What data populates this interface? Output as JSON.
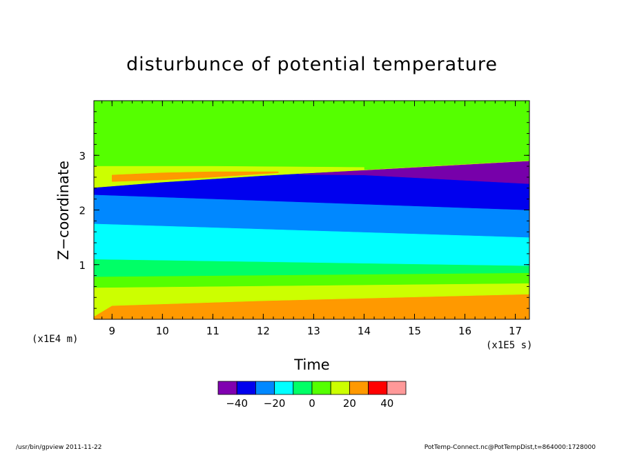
{
  "chart_data": {
    "type": "heatmap",
    "title": "disturbunce of potential temperature",
    "xlabel": "Time",
    "ylabel": "Z−coordinate",
    "x_unit": "(x1E5 s)",
    "y_unit": "(x1E4 m)",
    "xlim": [
      8.64,
      17.28
    ],
    "ylim": [
      0,
      4
    ],
    "x_ticks": [
      9,
      10,
      11,
      12,
      13,
      14,
      15,
      16,
      17
    ],
    "x_tick_labels": [
      "9",
      "10",
      "11",
      "12",
      "13",
      "14",
      "15",
      "16",
      "17"
    ],
    "y_ticks": [
      1,
      2,
      3
    ],
    "y_tick_labels": [
      "1",
      "2",
      "3"
    ],
    "background_level_color": "#55ff00",
    "bands": [
      {
        "name": "orange-lower",
        "color": "#ff9900",
        "top": [
          [
            8.64,
            0.05
          ],
          [
            9.0,
            0.25
          ],
          [
            12.0,
            0.34
          ],
          [
            17.28,
            0.46
          ]
        ],
        "bottom": [
          [
            8.64,
            0.0
          ],
          [
            17.28,
            0.0
          ]
        ]
      },
      {
        "name": "yellow-lower",
        "color": "#ccff00",
        "top": [
          [
            8.64,
            0.58
          ],
          [
            17.28,
            0.66
          ]
        ],
        "bottom": "orange-lower"
      },
      {
        "name": "green-lower",
        "color": "#55ff00",
        "top": [
          [
            8.64,
            0.78
          ],
          [
            17.28,
            0.85
          ]
        ],
        "bottom": "yellow-lower"
      },
      {
        "name": "mint-lower",
        "color": "#00ff66",
        "top": [
          [
            8.64,
            1.1
          ],
          [
            17.28,
            0.98
          ]
        ],
        "bottom": "green-lower"
      },
      {
        "name": "cyan",
        "color": "#00ffff",
        "top": [
          [
            8.64,
            1.75
          ],
          [
            17.28,
            1.5
          ]
        ],
        "bottom": "mint-lower"
      },
      {
        "name": "azure",
        "color": "#0088ff",
        "top": [
          [
            8.64,
            2.28
          ],
          [
            17.28,
            2.0
          ]
        ],
        "bottom": "cyan"
      },
      {
        "name": "blue",
        "color": "#0000ee",
        "top": [
          [
            8.64,
            2.41
          ],
          [
            10.0,
            2.51
          ],
          [
            12.0,
            2.63
          ],
          [
            14.0,
            2.73
          ],
          [
            17.28,
            2.9
          ]
        ],
        "bottom": "azure"
      },
      {
        "name": "purple",
        "color": "#7700aa",
        "top": [
          [
            12.7,
            2.65
          ],
          [
            14.0,
            2.73
          ],
          [
            17.28,
            2.9
          ]
        ],
        "bottom": [
          [
            12.7,
            2.65
          ],
          [
            14.0,
            2.64
          ],
          [
            17.28,
            2.48
          ]
        ]
      },
      {
        "name": "yellow-upper",
        "color": "#ccff00",
        "top": [
          [
            8.64,
            2.8
          ],
          [
            11.0,
            2.8
          ],
          [
            14.0,
            2.78
          ],
          [
            14.0,
            2.73
          ]
        ],
        "bottom": "blue"
      },
      {
        "name": "orange-upper",
        "color": "#ff9900",
        "top": [
          [
            9.0,
            2.64
          ],
          [
            10.0,
            2.68
          ],
          [
            11.0,
            2.7
          ],
          [
            12.3,
            2.7
          ]
        ],
        "bottom": [
          [
            9.0,
            2.52
          ],
          [
            10.0,
            2.55
          ],
          [
            11.0,
            2.6
          ],
          [
            12.3,
            2.68
          ]
        ]
      }
    ],
    "colorbar": {
      "colors": [
        "#8000b0",
        "#0000ee",
        "#0088ff",
        "#00ffff",
        "#00ff66",
        "#55ff00",
        "#ccff00",
        "#ff9900",
        "#ff0000",
        "#ff9999"
      ],
      "tick_labels": [
        "−40",
        "−20",
        "0",
        "20",
        "40"
      ],
      "tick_values": [
        -40,
        -20,
        0,
        20,
        40
      ]
    }
  },
  "footer": {
    "left": "/usr/bin/gpview   2011-11-22",
    "right": "PotTemp-Connect.nc@PotTempDist,t=864000:1728000"
  }
}
